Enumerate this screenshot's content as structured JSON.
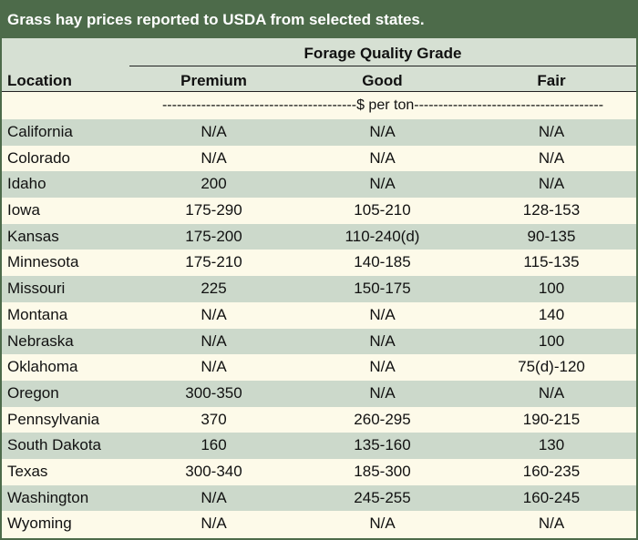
{
  "title": "Grass hay prices reported to USDA from selected states.",
  "header": {
    "location": "Location",
    "group": "Forage Quality Grade",
    "premium": "Premium",
    "good": "Good",
    "fair": "Fair"
  },
  "units": "----------------------------------------$ per ton---------------------------------------",
  "rows": [
    {
      "location": "California",
      "premium": "N/A",
      "good": "N/A",
      "fair": "N/A"
    },
    {
      "location": "Colorado",
      "premium": "N/A",
      "good": "N/A",
      "fair": "N/A"
    },
    {
      "location": "Idaho",
      "premium": "200",
      "good": "N/A",
      "fair": "N/A"
    },
    {
      "location": "Iowa",
      "premium": "175-290",
      "good": "105-210",
      "fair": "128-153"
    },
    {
      "location": "Kansas",
      "premium": "175-200",
      "good": "110-240(d)",
      "fair": "90-135"
    },
    {
      "location": "Minnesota",
      "premium": "175-210",
      "good": "140-185",
      "fair": "115-135"
    },
    {
      "location": "Missouri",
      "premium": "225",
      "good": "150-175",
      "fair": "100"
    },
    {
      "location": "Montana",
      "premium": "N/A",
      "good": "N/A",
      "fair": "140"
    },
    {
      "location": "Nebraska",
      "premium": "N/A",
      "good": "N/A",
      "fair": "100"
    },
    {
      "location": "Oklahoma",
      "premium": "N/A",
      "good": "N/A",
      "fair": "75(d)-120"
    },
    {
      "location": "Oregon",
      "premium": "300-350",
      "good": "N/A",
      "fair": "N/A"
    },
    {
      "location": "Pennsylvania",
      "premium": "370",
      "good": "260-295",
      "fair": "190-215"
    },
    {
      "location": "South Dakota",
      "premium": "160",
      "good": "135-160",
      "fair": "130"
    },
    {
      "location": "Texas",
      "premium": "300-340",
      "good": "185-300",
      "fair": "160-235"
    },
    {
      "location": "Washington",
      "premium": "N/A",
      "good": "245-255",
      "fair": "160-245"
    },
    {
      "location": "Wyoming",
      "premium": "N/A",
      "good": "N/A",
      "fair": "N/A"
    }
  ]
}
